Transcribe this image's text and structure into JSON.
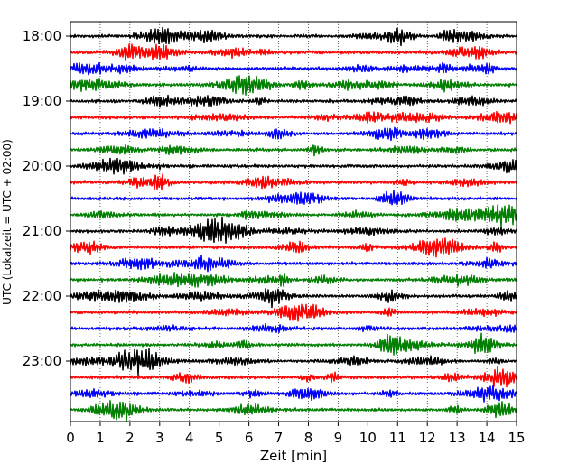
{
  "chart_data": {
    "type": "line",
    "title": "",
    "xlabel": "Zeit  [min]",
    "ylabel": "UTC (Lokalzeit = UTC + 02:00)",
    "xlim": [
      0,
      15
    ],
    "x_ticks": [
      "0",
      "1",
      "2",
      "3",
      "4",
      "5",
      "6",
      "7",
      "8",
      "9",
      "10",
      "11",
      "12",
      "13",
      "14",
      "15"
    ],
    "y_ticks": [
      "18:00",
      "19:00",
      "20:00",
      "21:00",
      "22:00",
      "23:00"
    ],
    "grid": "vertical dotted",
    "trace_colors": [
      "#000000",
      "#ff0000",
      "#0000ff",
      "#007f00"
    ],
    "trace_start_times": [
      "18:00",
      "18:15",
      "18:30",
      "18:45",
      "19:00",
      "19:15",
      "19:30",
      "19:45",
      "20:00",
      "20:15",
      "20:30",
      "20:45",
      "21:00",
      "21:15",
      "21:30",
      "21:45",
      "22:00",
      "22:15",
      "22:30",
      "22:45",
      "23:00",
      "23:15",
      "23:30",
      "23:45"
    ],
    "trace_minutes_per_line": 15
  }
}
